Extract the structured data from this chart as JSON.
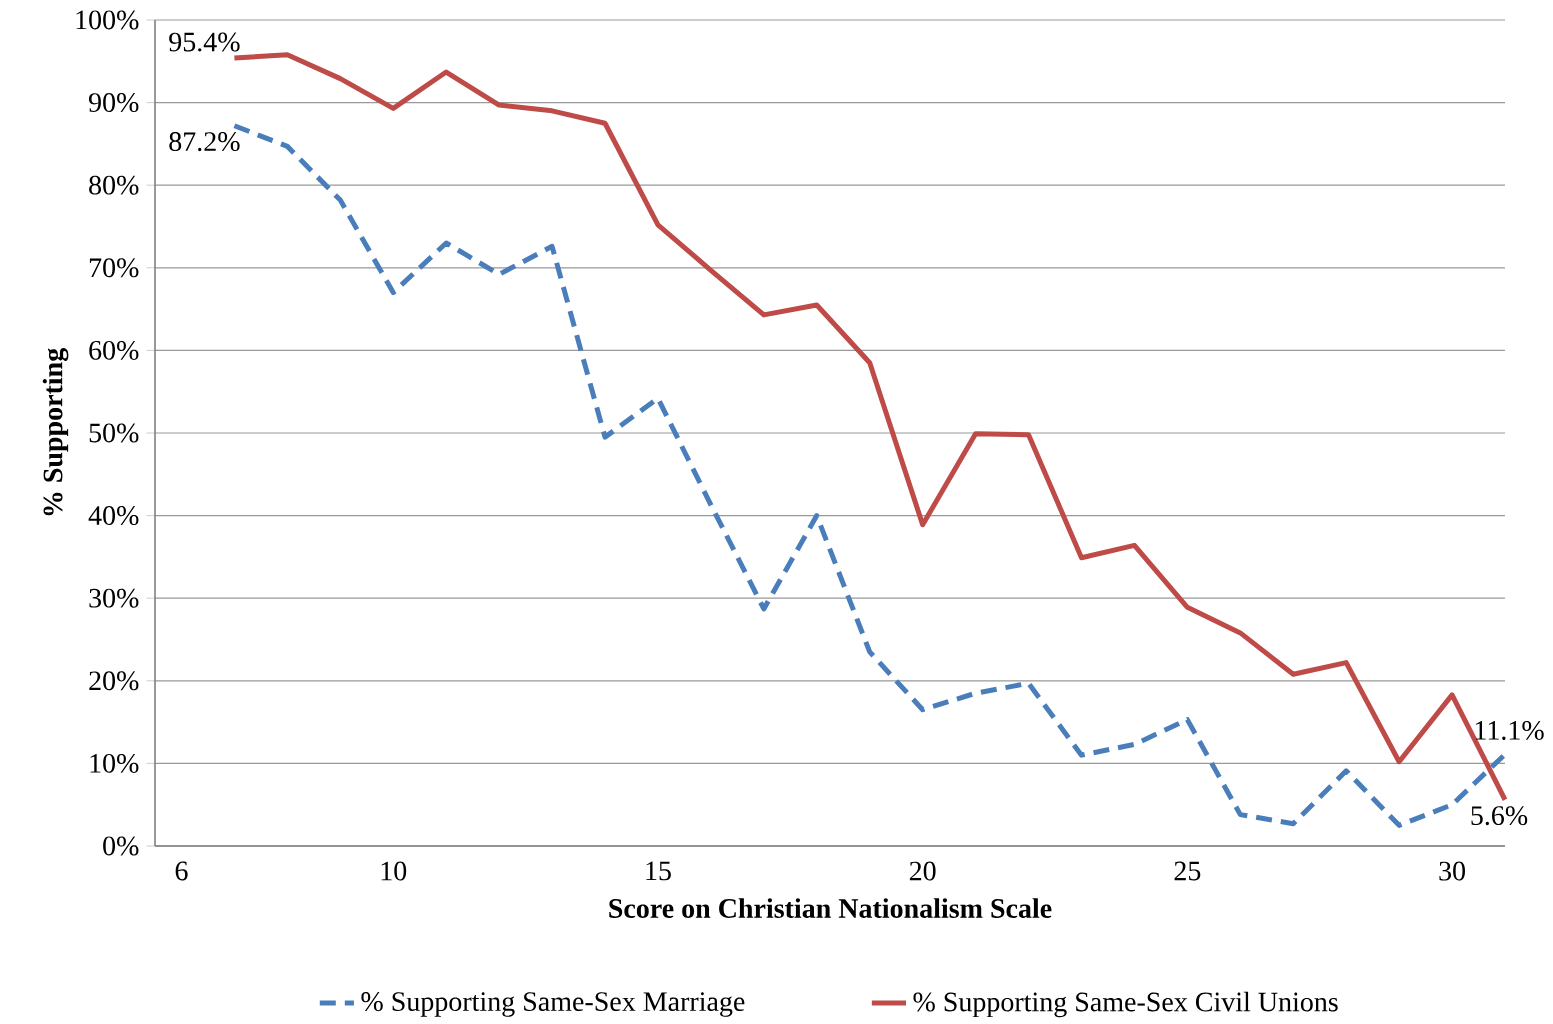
{
  "chart_data": {
    "type": "line",
    "xlabel": "Score on Christian Nationalism Scale",
    "ylabel": "% Supporting",
    "x": [
      7,
      8,
      9,
      10,
      11,
      12,
      13,
      14,
      15,
      16,
      17,
      18,
      19,
      20,
      21,
      22,
      23,
      24,
      25,
      26,
      27,
      28,
      29,
      30,
      31
    ],
    "xlim": [
      5.5,
      31
    ],
    "xticks": [
      6,
      10,
      15,
      20,
      25,
      30
    ],
    "ylim": [
      0,
      100
    ],
    "yticks": [
      {
        "value": 0,
        "label": "0%"
      },
      {
        "value": 10,
        "label": "10%"
      },
      {
        "value": 20,
        "label": "20%"
      },
      {
        "value": 30,
        "label": "30%"
      },
      {
        "value": 40,
        "label": "40%"
      },
      {
        "value": 50,
        "label": "50%"
      },
      {
        "value": 60,
        "label": "60%"
      },
      {
        "value": 70,
        "label": "70%"
      },
      {
        "value": 80,
        "label": "80%"
      },
      {
        "value": 90,
        "label": "90%"
      },
      {
        "value": 100,
        "label": "100%"
      }
    ],
    "grid": "y",
    "legend": "bottom",
    "marker": "none",
    "series": [
      {
        "name": "% Supporting Same-Sex Marriage",
        "color": "#4a7ebb",
        "line_style": "dashed",
        "values": [
          87.2,
          84.7,
          78.2,
          67.0,
          73.0,
          69.2,
          72.6,
          49.5,
          54.2,
          41.3,
          28.7,
          40.0,
          23.5,
          16.5,
          18.5,
          19.7,
          11.0,
          12.3,
          15.3,
          3.8,
          2.7,
          9.1,
          2.5,
          5.0,
          11.1
        ],
        "value_labels": [
          "87.2%",
          null,
          null,
          null,
          null,
          null,
          null,
          null,
          null,
          null,
          null,
          null,
          null,
          null,
          null,
          null,
          null,
          null,
          null,
          null,
          null,
          null,
          null,
          null,
          "11.1%"
        ]
      },
      {
        "name": "% Supporting Same-Sex Civil Unions",
        "color": "#be4b48",
        "line_style": "solid",
        "values": [
          95.4,
          95.8,
          92.9,
          89.3,
          93.7,
          89.7,
          89.0,
          87.5,
          75.2,
          69.7,
          64.3,
          65.5,
          58.5,
          38.9,
          49.9,
          49.8,
          34.9,
          36.4,
          28.9,
          25.8,
          20.8,
          22.2,
          10.2,
          18.3,
          5.6
        ],
        "value_labels": [
          "95.4%",
          null,
          null,
          null,
          null,
          null,
          null,
          null,
          null,
          null,
          null,
          null,
          null,
          null,
          null,
          null,
          null,
          null,
          null,
          null,
          null,
          null,
          null,
          null,
          "5.6%"
        ]
      }
    ]
  }
}
